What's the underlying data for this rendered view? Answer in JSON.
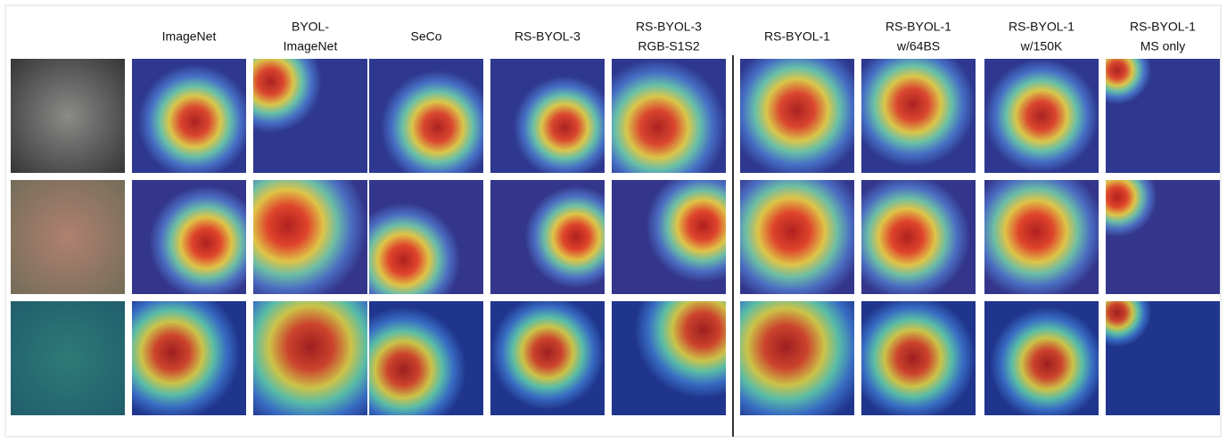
{
  "headers": [
    [
      "ImageNet"
    ],
    [
      "BYOL-",
      "ImageNet"
    ],
    [
      "SeCo"
    ],
    [
      "RS-BYOL-3"
    ],
    [
      "RS-BYOL-3",
      "RGB-S1S2"
    ],
    [
      "RS-BYOL-1"
    ],
    [
      "RS-BYOL-1",
      "w/64BS"
    ],
    [
      "RS-BYOL-1",
      "w/150K"
    ],
    [
      "RS-BYOL-1",
      "MS only"
    ]
  ]
}
